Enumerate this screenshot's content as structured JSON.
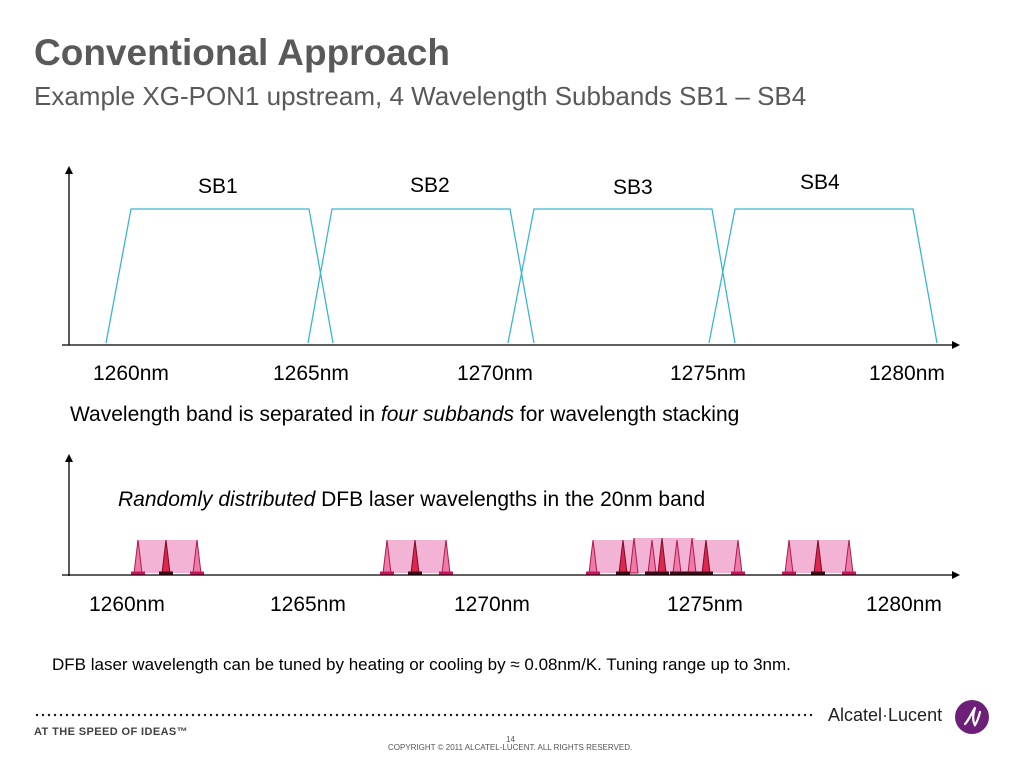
{
  "title": "Conventional Approach",
  "subtitle": "Example XG-PON1 upstream, 4 Wavelength Subbands SB1 – SB4",
  "top_diagram": {
    "subband_labels": [
      "SB1",
      "SB2",
      "SB3",
      "SB4"
    ],
    "axis_labels": [
      "1260nm",
      "1265nm",
      "1270nm",
      "1275nm",
      "1280nm"
    ],
    "line_color": "#3bb5d5"
  },
  "caption1": {
    "pre": "Wavelength band is separated in ",
    "em": "four subbands",
    "post": " for wavelength stacking"
  },
  "bottom_diagram": {
    "axis_labels": [
      "1260nm",
      "1265nm",
      "1270nm",
      "1275nm",
      "1280nm"
    ],
    "band_fill": "#f2b3d4",
    "laser_color": "#e0264f"
  },
  "caption2": {
    "em": "Randomly distributed",
    "post": " DFB laser wavelengths in the 20nm band"
  },
  "note": "DFB laser wavelength can be tuned by heating or cooling by ≈ 0.08nm/K. Tuning range up to 3nm.",
  "footer": {
    "tagline": "AT THE SPEED OF IDEAS™",
    "page_number": "14",
    "copyright": "COPYRIGHT © 2011 ALCATEL-LUCENT.  ALL RIGHTS RESERVED.",
    "brand_left": "Alcatel",
    "brand_sep": "·",
    "brand_right": "Lucent"
  }
}
